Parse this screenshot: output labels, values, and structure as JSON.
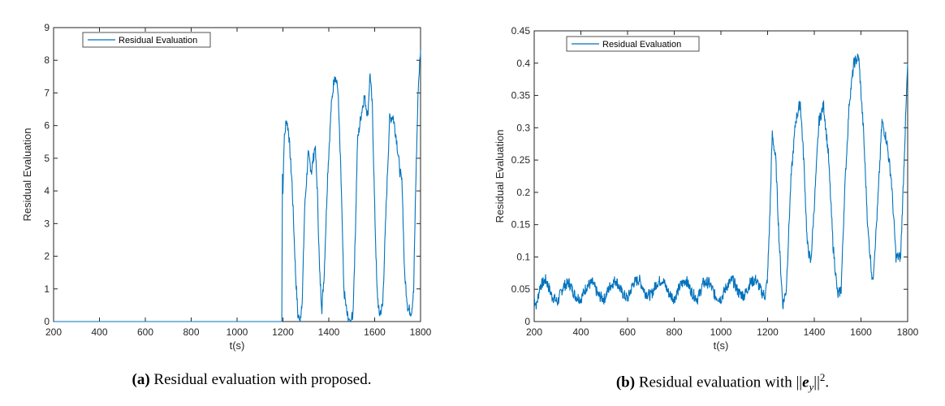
{
  "chart_data": [
    {
      "type": "line",
      "panel": "a",
      "title": "",
      "xlabel": "t(s)",
      "ylabel": "Residual Evaluation",
      "xlim": [
        200,
        1800
      ],
      "ylim": [
        0,
        9
      ],
      "xticks": [
        200,
        400,
        600,
        800,
        1000,
        1200,
        1400,
        1600,
        1800
      ],
      "yticks": [
        0,
        1,
        2,
        3,
        4,
        5,
        6,
        7,
        8,
        9
      ],
      "legend": {
        "label": "Residual Evaluation",
        "position": "top-left"
      },
      "series": [
        {
          "name": "Residual Evaluation",
          "color": "#0072BD",
          "x": [
            200,
            1000,
            1195,
            1198,
            1200,
            1205,
            1215,
            1225,
            1240,
            1255,
            1265,
            1275,
            1285,
            1295,
            1310,
            1325,
            1340,
            1350,
            1360,
            1370,
            1380,
            1395,
            1410,
            1425,
            1440,
            1455,
            1465,
            1480,
            1495,
            1505,
            1515,
            1525,
            1540,
            1555,
            1570,
            1580,
            1590,
            1600,
            1610,
            1620,
            1635,
            1650,
            1665,
            1680,
            1695,
            1710,
            1720,
            1730,
            1745,
            1760,
            1770,
            1780,
            1790,
            1800
          ],
          "y": [
            0,
            0,
            0,
            4.5,
            4.0,
            5.5,
            6.2,
            5.8,
            4.2,
            1.5,
            0.2,
            0.0,
            0.8,
            3.5,
            5.1,
            4.6,
            5.4,
            4.0,
            1.5,
            0.4,
            1.5,
            4.5,
            6.5,
            7.6,
            7.1,
            4.0,
            1.0,
            0.2,
            0.0,
            0.2,
            2.5,
            5.5,
            6.3,
            6.9,
            6.3,
            7.6,
            6.5,
            3.5,
            1.0,
            0.2,
            0.5,
            3.5,
            6.2,
            6.3,
            5.6,
            4.6,
            4.2,
            1.5,
            0.4,
            0.3,
            0.9,
            4.5,
            7.2,
            8.3
          ]
        }
      ]
    },
    {
      "type": "line",
      "panel": "b",
      "title": "",
      "xlabel": "t(s)",
      "ylabel": "Residual Evaluation",
      "xlim": [
        200,
        1800
      ],
      "ylim": [
        0,
        0.45
      ],
      "xticks": [
        200,
        400,
        600,
        800,
        1000,
        1200,
        1400,
        1600,
        1800
      ],
      "yticks": [
        0,
        0.05,
        0.1,
        0.15,
        0.2,
        0.25,
        0.3,
        0.35,
        0.4,
        0.45
      ],
      "legend": {
        "label": "Residual Evaluation",
        "position": "top-left"
      },
      "series": [
        {
          "name": "Residual Evaluation",
          "color": "#0072BD",
          "x": [
            200,
            210,
            225,
            250,
            275,
            300,
            325,
            350,
            375,
            400,
            425,
            450,
            475,
            500,
            525,
            550,
            575,
            600,
            625,
            650,
            675,
            700,
            725,
            750,
            775,
            800,
            825,
            850,
            875,
            900,
            925,
            950,
            975,
            1000,
            1025,
            1050,
            1075,
            1100,
            1125,
            1150,
            1175,
            1190,
            1200,
            1210,
            1220,
            1235,
            1250,
            1265,
            1280,
            1300,
            1320,
            1340,
            1355,
            1370,
            1385,
            1400,
            1420,
            1440,
            1460,
            1480,
            1500,
            1515,
            1530,
            1550,
            1570,
            1590,
            1610,
            1630,
            1650,
            1670,
            1690,
            1710,
            1730,
            1750,
            1770,
            1785,
            1800
          ],
          "y": [
            0.035,
            0.025,
            0.055,
            0.065,
            0.04,
            0.03,
            0.055,
            0.06,
            0.04,
            0.035,
            0.055,
            0.06,
            0.04,
            0.035,
            0.055,
            0.065,
            0.045,
            0.035,
            0.06,
            0.065,
            0.045,
            0.04,
            0.06,
            0.065,
            0.045,
            0.035,
            0.055,
            0.065,
            0.045,
            0.035,
            0.06,
            0.06,
            0.04,
            0.035,
            0.055,
            0.065,
            0.045,
            0.04,
            0.06,
            0.065,
            0.045,
            0.04,
            0.07,
            0.17,
            0.29,
            0.25,
            0.12,
            0.025,
            0.05,
            0.22,
            0.31,
            0.34,
            0.25,
            0.12,
            0.09,
            0.18,
            0.31,
            0.335,
            0.26,
            0.12,
            0.04,
            0.05,
            0.2,
            0.34,
            0.4,
            0.41,
            0.3,
            0.14,
            0.06,
            0.17,
            0.31,
            0.28,
            0.22,
            0.1,
            0.1,
            0.25,
            0.4
          ]
        }
      ]
    }
  ],
  "captions": {
    "a_label": "(a)",
    "a_text": "Residual evaluation with proposed.",
    "b_label": "(b)",
    "b_prefix": "Residual evaluation with ||",
    "b_var": "e",
    "b_sub": "y",
    "b_mid": "||",
    "b_sup": "2",
    "b_end": "."
  }
}
